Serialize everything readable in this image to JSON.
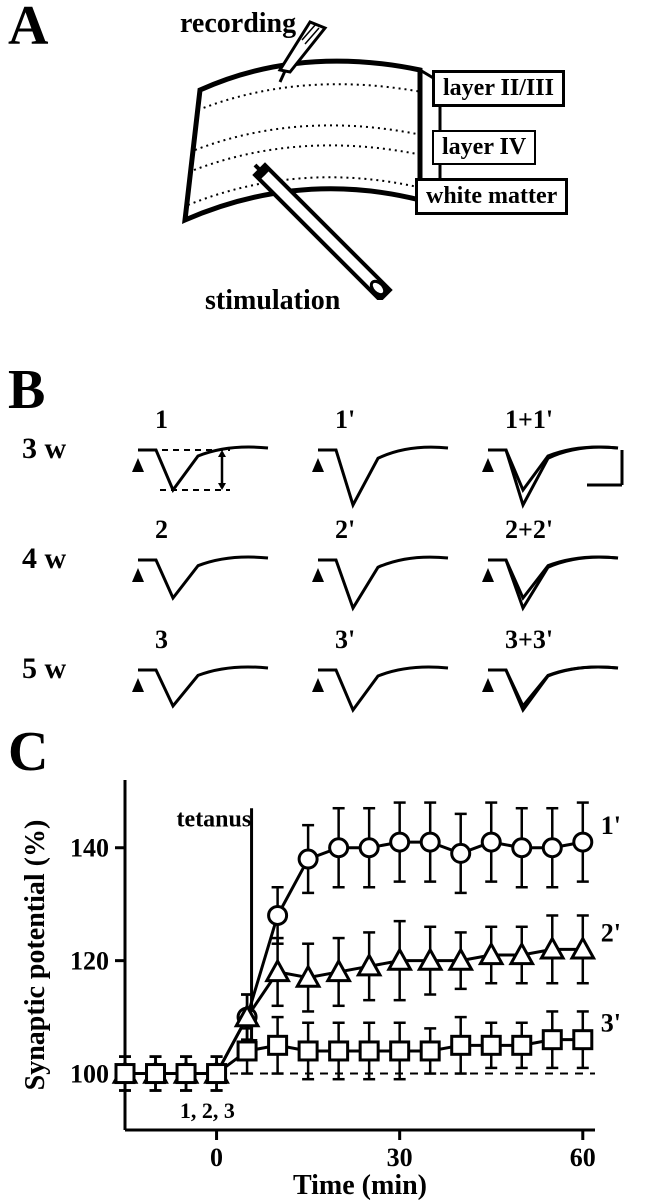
{
  "panelA": {
    "label": "A",
    "recording_label": "recording",
    "stimulation_label": "stimulation",
    "layers": {
      "layer23": "layer II/III",
      "layer4": "layer IV",
      "white_matter": "white matter"
    },
    "colors": {
      "stroke": "#000000",
      "fill": "#ffffff"
    }
  },
  "panelB": {
    "label": "B",
    "rows": [
      {
        "age": "3 w",
        "cols": [
          "1",
          "1'",
          "1+1'"
        ]
      },
      {
        "age": "4 w",
        "cols": [
          "2",
          "2'",
          "2+2'"
        ]
      },
      {
        "age": "5 w",
        "cols": [
          "3",
          "3'",
          "3+3'"
        ]
      }
    ],
    "marker_color": "#000000",
    "trace_color": "#000000",
    "font_size_age": 30,
    "font_size_trace": 26
  },
  "panelC": {
    "label": "C",
    "type": "line",
    "xlabel": "Time (min)",
    "ylabel": "Synaptic potential (%)",
    "xlim": [
      -15,
      62
    ],
    "ylim": [
      90,
      152
    ],
    "xticks": [
      0,
      30,
      60
    ],
    "yticks": [
      100,
      120,
      140
    ],
    "tetanus_label": "tetanus",
    "tetanus_x": 0,
    "baseline_label": "1, 2, 3",
    "series": [
      {
        "name": "1'",
        "marker": "circle",
        "x": [
          -15,
          -10,
          -5,
          0,
          5,
          10,
          15,
          20,
          25,
          30,
          35,
          40,
          45,
          50,
          55,
          60
        ],
        "y": [
          100,
          100,
          100,
          100,
          110,
          128,
          138,
          140,
          140,
          141,
          141,
          139,
          141,
          140,
          140,
          141
        ],
        "err": [
          3,
          3,
          3,
          3,
          4,
          5,
          6,
          7,
          7,
          7,
          7,
          7,
          7,
          7,
          7,
          7
        ]
      },
      {
        "name": "2'",
        "marker": "triangle",
        "x": [
          -15,
          -10,
          -5,
          0,
          5,
          10,
          15,
          20,
          25,
          30,
          35,
          40,
          45,
          50,
          55,
          60
        ],
        "y": [
          100,
          100,
          100,
          100,
          110,
          118,
          117,
          118,
          119,
          120,
          120,
          120,
          121,
          121,
          122,
          122
        ],
        "err": [
          3,
          3,
          3,
          3,
          4,
          6,
          6,
          6,
          6,
          7,
          6,
          5,
          5,
          5,
          6,
          6
        ]
      },
      {
        "name": "3'",
        "marker": "square",
        "x": [
          -15,
          -10,
          -5,
          0,
          5,
          10,
          15,
          20,
          25,
          30,
          35,
          40,
          45,
          50,
          55,
          60
        ],
        "y": [
          100,
          100,
          100,
          100,
          104,
          105,
          104,
          104,
          104,
          104,
          104,
          105,
          105,
          105,
          106,
          106
        ],
        "err": [
          3,
          3,
          3,
          3,
          4,
          5,
          5,
          5,
          5,
          5,
          4,
          5,
          4,
          4,
          5,
          5
        ]
      }
    ],
    "colors": {
      "axis": "#000000",
      "series": "#000000",
      "marker_fill": "#ffffff",
      "background": "#ffffff",
      "dash": "#000000"
    },
    "marker_size": 9,
    "line_width": 3,
    "axis_width": 3,
    "font_size_axis": 28,
    "font_size_tick": 26,
    "font_size_series": 26
  }
}
